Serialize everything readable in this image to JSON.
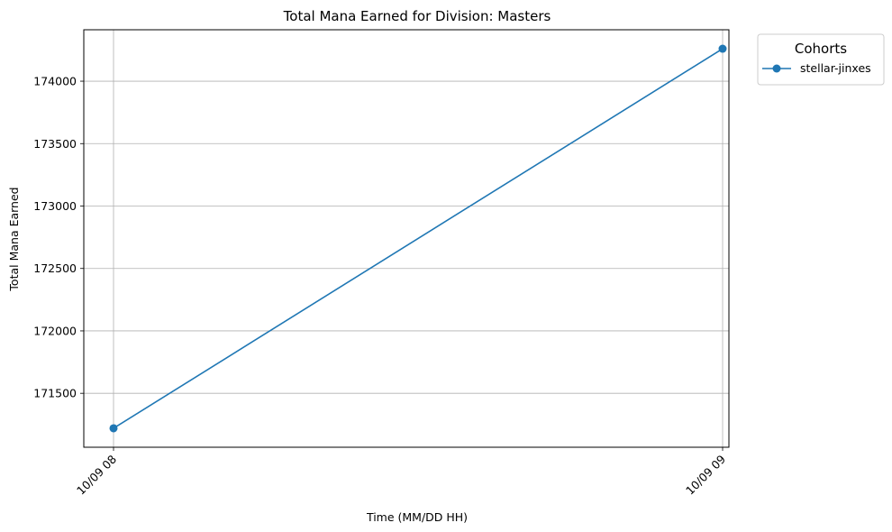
{
  "chart_data": {
    "type": "line",
    "title": "Total Mana Earned for Division: Masters",
    "xlabel": "Time (MM/DD HH)",
    "ylabel": "Total Mana Earned",
    "categories": [
      "10/09 08",
      "10/09 09"
    ],
    "series": [
      {
        "name": "stellar-jinxes",
        "color": "#1f77b4",
        "values": [
          171220,
          174260
        ]
      }
    ],
    "y_ticks": [
      171500,
      172000,
      172500,
      173000,
      173500,
      174000
    ],
    "ylim": [
      171068,
      174412
    ],
    "grid": true,
    "legend": {
      "title": "Cohorts",
      "placement": "outside-top-right"
    },
    "marker": "circle"
  }
}
